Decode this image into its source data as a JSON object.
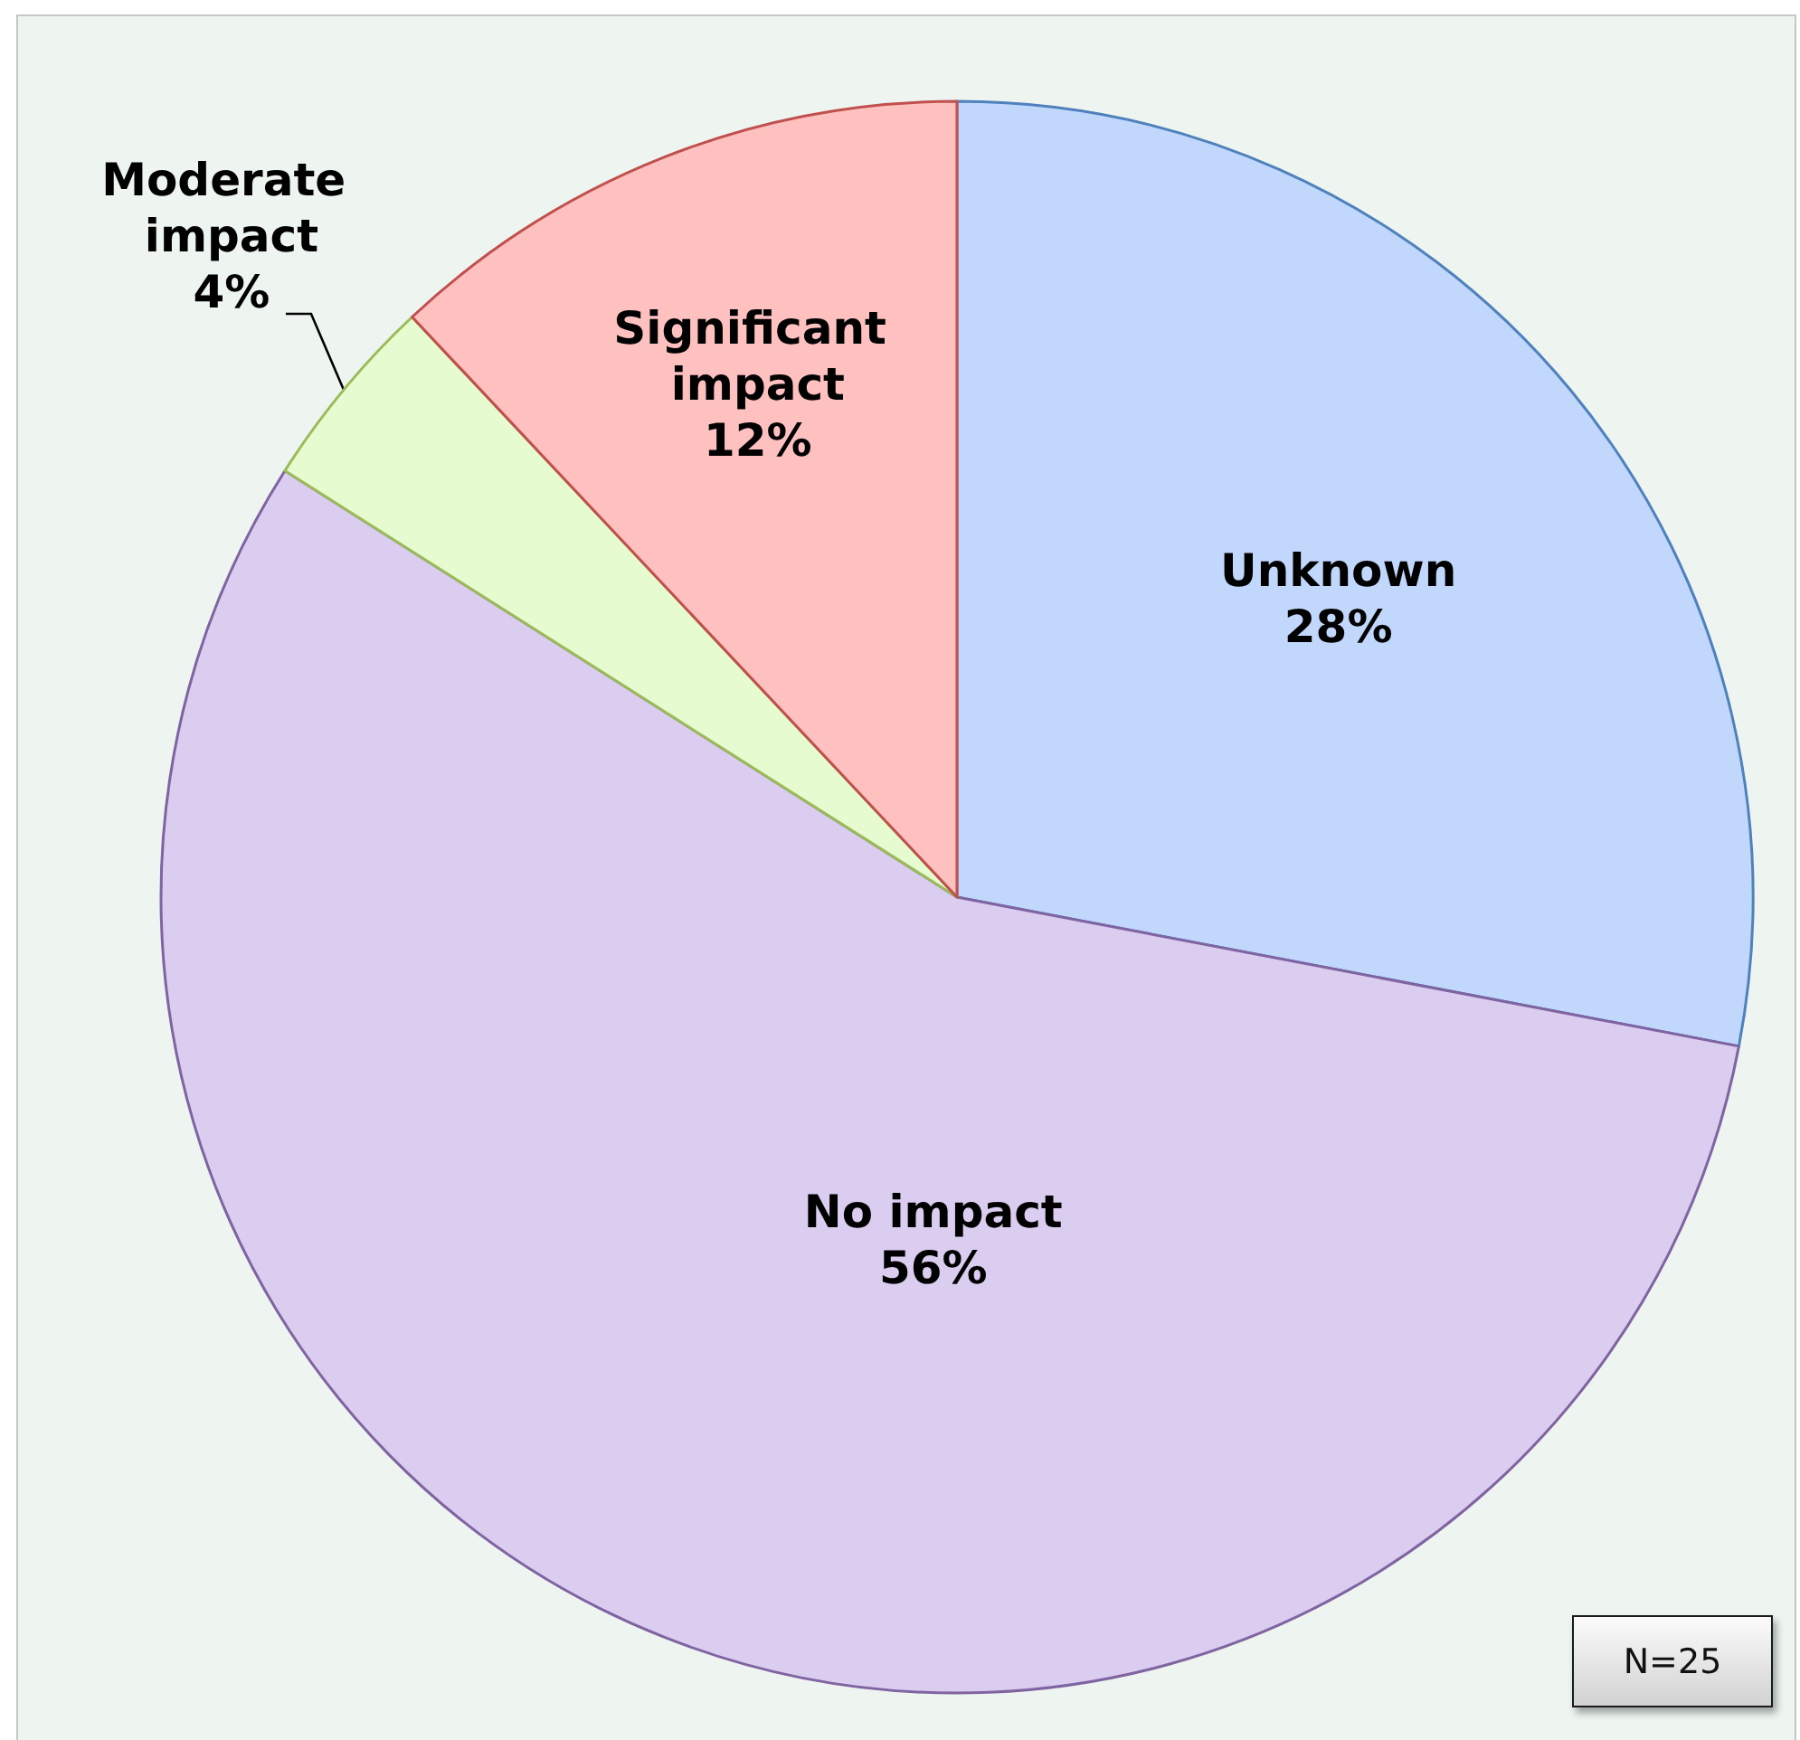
{
  "chart_data": {
    "type": "pie",
    "categories": [
      "Unknown",
      "No impact",
      "Moderate impact",
      "Significant impact"
    ],
    "values": [
      28,
      56,
      4,
      12
    ],
    "value_labels": [
      "28%",
      "56%",
      "4%",
      "12%"
    ],
    "colors": [
      "#c1d8fc",
      "#dacdef",
      "#e6fbd0",
      "#ffc0c0"
    ],
    "annotations": [
      "N=25"
    ]
  }
}
